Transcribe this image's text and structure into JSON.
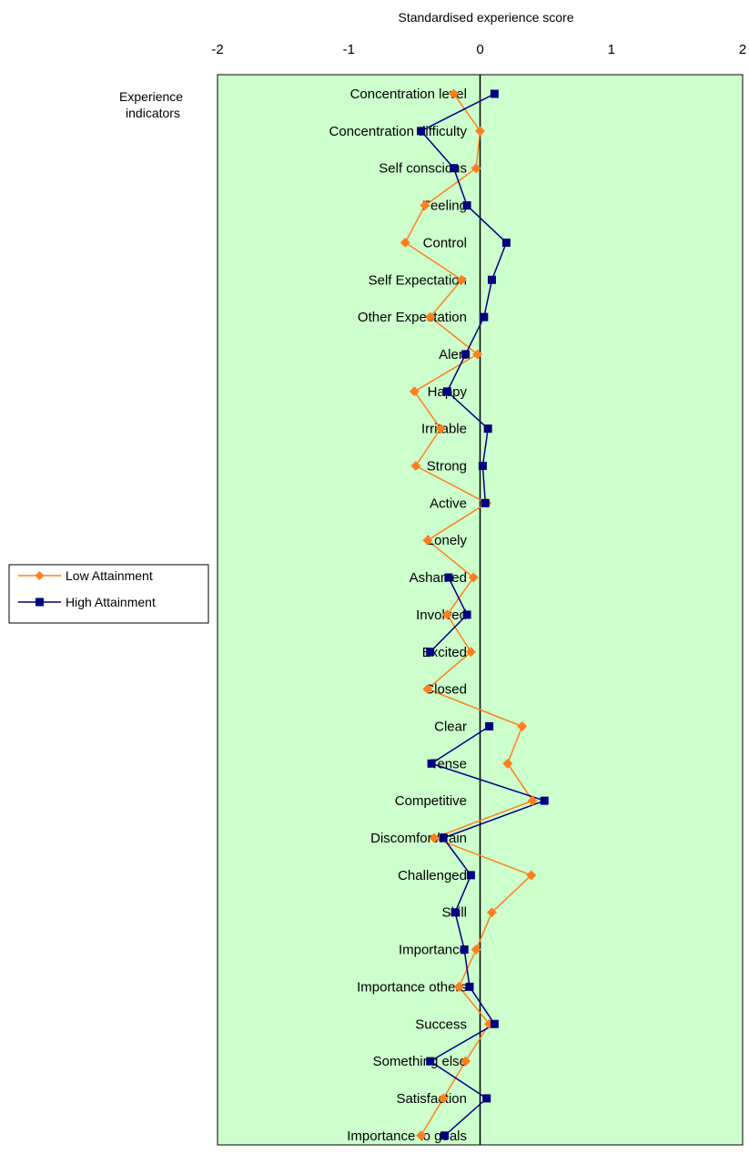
{
  "chart_data": {
    "type": "line",
    "orientation": "horizontal",
    "title": "",
    "xlabel": "Standardised experience score",
    "ylabel": "Experience indicators",
    "xlim": [
      -2,
      2
    ],
    "xticks": [
      "-2",
      "-1",
      "0",
      "1",
      "2"
    ],
    "grid": false,
    "legend_position": "left",
    "plot_background": "#ccffcc",
    "categories": [
      "Concentration level",
      "Concentration difficulty",
      "Self conscious",
      "Feeling",
      "Control",
      "Self Expectation",
      "Other Expectation",
      "Alert",
      "Happy",
      "Irritable",
      "Strong",
      "Active",
      "Lonely",
      "Ashamed",
      "Involved",
      "Excited",
      "Closed",
      "Clear",
      "Tense",
      "Competitive",
      "Discomfort/Pain",
      "Challenged",
      "Skill",
      "Importance",
      "Importance others",
      "Success",
      "Something else",
      "Satisfaction",
      "Importance to goals"
    ],
    "series": [
      {
        "name": "Low Attainment",
        "color": "#ff7f1e",
        "marker": "diamond",
        "values": [
          -0.2,
          0.0,
          -0.03,
          -0.42,
          -0.57,
          -0.14,
          -0.38,
          -0.02,
          -0.5,
          -0.3,
          -0.49,
          0.05,
          -0.4,
          -0.05,
          -0.25,
          -0.07,
          -0.4,
          0.32,
          0.21,
          0.4,
          -0.35,
          0.39,
          0.09,
          -0.03,
          -0.16,
          0.07,
          -0.11,
          -0.28,
          -0.45
        ]
      },
      {
        "name": "High Attainment",
        "color": "#00007f",
        "marker": "square",
        "values": [
          0.11,
          -0.45,
          -0.2,
          -0.1,
          0.2,
          0.09,
          0.03,
          -0.11,
          -0.25,
          0.06,
          0.02,
          0.04,
          null,
          -0.24,
          -0.1,
          -0.38,
          null,
          0.07,
          -0.37,
          0.49,
          -0.28,
          -0.07,
          -0.19,
          -0.12,
          -0.08,
          0.11,
          -0.38,
          0.05,
          -0.27
        ]
      }
    ]
  }
}
